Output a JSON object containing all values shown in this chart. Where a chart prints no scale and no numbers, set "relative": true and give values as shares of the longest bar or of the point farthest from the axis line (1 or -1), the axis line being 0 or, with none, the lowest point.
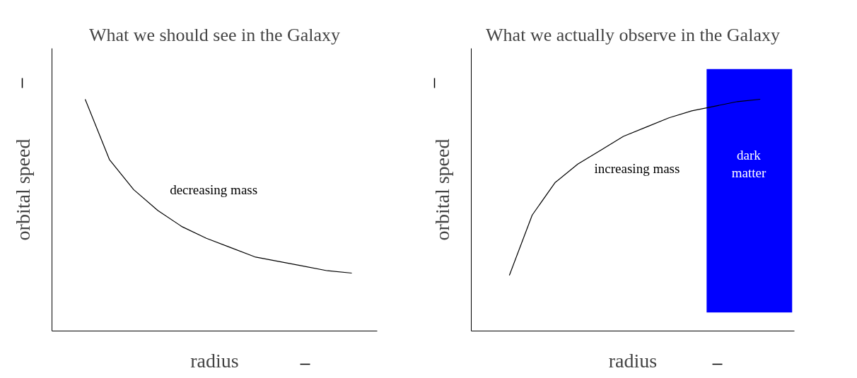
{
  "chart_data": [
    {
      "type": "line",
      "title": "What we should see in the Galaxy",
      "xlabel": "radius",
      "ylabel": "orbital speed",
      "relative": true,
      "categories": [
        null,
        null,
        null,
        null,
        null,
        null,
        null,
        null,
        null,
        null,
        null,
        null
      ],
      "series": [
        {
          "color": "#000000",
          "values": [
            1.0,
            0.74,
            0.61,
            0.52,
            0.45,
            0.4,
            0.36,
            0.32,
            0.3,
            0.28,
            0.26,
            0.25
          ]
        }
      ],
      "annotations": [
        "decreasing mass"
      ],
      "grid": false,
      "tick_labels": false
    },
    {
      "type": "line",
      "title": "What we actually observe in the Galaxy",
      "xlabel": "radius",
      "ylabel": "orbital speed",
      "relative": true,
      "categories": [
        null,
        null,
        null,
        null,
        null,
        null,
        null,
        null,
        null,
        null,
        null,
        null
      ],
      "series": [
        {
          "color": "#000000",
          "values": [
            0.24,
            0.5,
            0.64,
            0.72,
            0.78,
            0.84,
            0.88,
            0.92,
            0.95,
            0.97,
            0.99,
            1.0
          ]
        }
      ],
      "annotations": [
        "increasing mass",
        "dark matter"
      ],
      "grid": false,
      "tick_labels": false
    }
  ]
}
